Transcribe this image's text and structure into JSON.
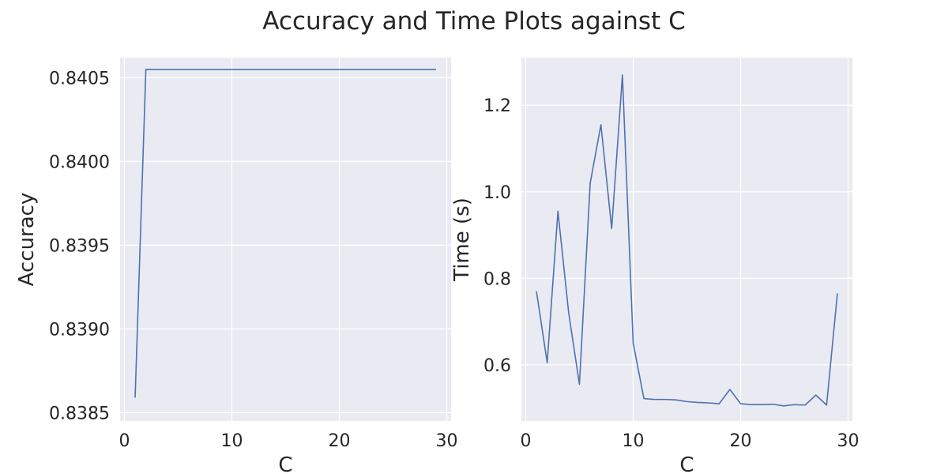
{
  "figure": {
    "title": "Accuracy and Time Plots against C"
  },
  "chart_data": [
    {
      "type": "line",
      "title": "",
      "xlabel": "C",
      "ylabel": "Accuracy",
      "xlim": [
        -0.4,
        30.4
      ],
      "ylim": [
        0.83845,
        0.84062
      ],
      "xticks": [
        0,
        10,
        20,
        30
      ],
      "yticks": [
        0.8385,
        0.839,
        0.8395,
        0.84,
        0.8405
      ],
      "ytick_labels": [
        "0.8385",
        "0.8390",
        "0.8395",
        "0.8400",
        "0.8405"
      ],
      "grid": true,
      "series": [
        {
          "color": "#4c72b0",
          "x": [
            1,
            2,
            3,
            4,
            5,
            6,
            7,
            8,
            9,
            10,
            11,
            12,
            13,
            14,
            15,
            16,
            17,
            18,
            19,
            20,
            21,
            22,
            23,
            24,
            25,
            26,
            27,
            28,
            29
          ],
          "y": [
            0.83859,
            0.84055,
            0.84055,
            0.84055,
            0.84055,
            0.84055,
            0.84055,
            0.84055,
            0.84055,
            0.84055,
            0.84055,
            0.84055,
            0.84055,
            0.84055,
            0.84055,
            0.84055,
            0.84055,
            0.84055,
            0.84055,
            0.84055,
            0.84055,
            0.84055,
            0.84055,
            0.84055,
            0.84055,
            0.84055,
            0.84055,
            0.84055,
            0.84055
          ]
        }
      ]
    },
    {
      "type": "line",
      "title": "",
      "xlabel": "C",
      "ylabel": "Time (s)",
      "xlim": [
        -0.4,
        30.4
      ],
      "ylim": [
        0.47,
        1.31
      ],
      "xticks": [
        0,
        10,
        20,
        30
      ],
      "yticks": [
        0.6,
        0.8,
        1.0,
        1.2
      ],
      "ytick_labels": [
        "0.6",
        "0.8",
        "1.0",
        "1.2"
      ],
      "grid": true,
      "series": [
        {
          "color": "#4c72b0",
          "x": [
            1,
            2,
            3,
            4,
            5,
            6,
            7,
            8,
            9,
            10,
            11,
            12,
            13,
            14,
            15,
            16,
            17,
            18,
            19,
            20,
            21,
            22,
            23,
            24,
            25,
            26,
            27,
            28,
            29
          ],
          "y": [
            0.77,
            0.605,
            0.955,
            0.72,
            0.555,
            1.02,
            1.155,
            0.915,
            1.27,
            0.65,
            0.522,
            0.52,
            0.52,
            0.519,
            0.515,
            0.513,
            0.512,
            0.51,
            0.543,
            0.51,
            0.508,
            0.508,
            0.509,
            0.505,
            0.508,
            0.507,
            0.53,
            0.507,
            0.765
          ]
        }
      ]
    }
  ]
}
